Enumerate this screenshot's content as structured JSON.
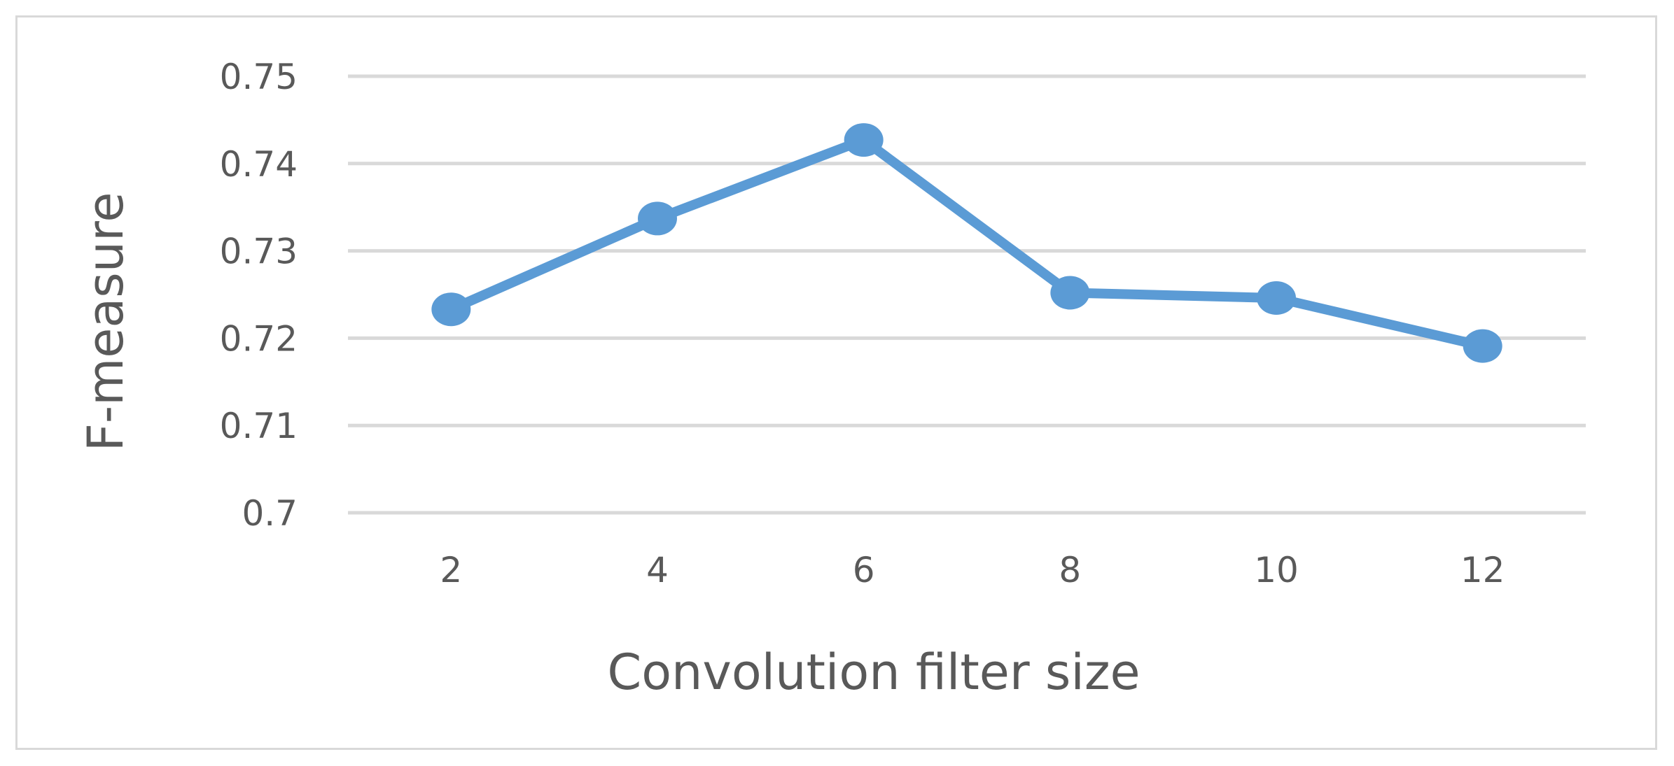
{
  "chart_data": {
    "type": "line",
    "title": "",
    "xlabel": "Convolution filter size",
    "ylabel": "F-measure",
    "categories": [
      "2",
      "4",
      "6",
      "8",
      "10",
      "12"
    ],
    "series": [
      {
        "values": [
          0.7233,
          0.7337,
          0.7427,
          0.7252,
          0.7246,
          0.7191
        ],
        "color": "#5b9bd5"
      }
    ],
    "ylim": [
      0.7,
      0.75
    ],
    "yticks": [
      0.7,
      0.71,
      0.72,
      0.73,
      0.74,
      0.75
    ],
    "ytick_labels": [
      "0.7",
      "0.71",
      "0.72",
      "0.73",
      "0.74",
      "0.75"
    ],
    "grid": true,
    "legend": "none",
    "colors": {
      "grid": "#d9d9d9",
      "text": "#595959"
    }
  }
}
